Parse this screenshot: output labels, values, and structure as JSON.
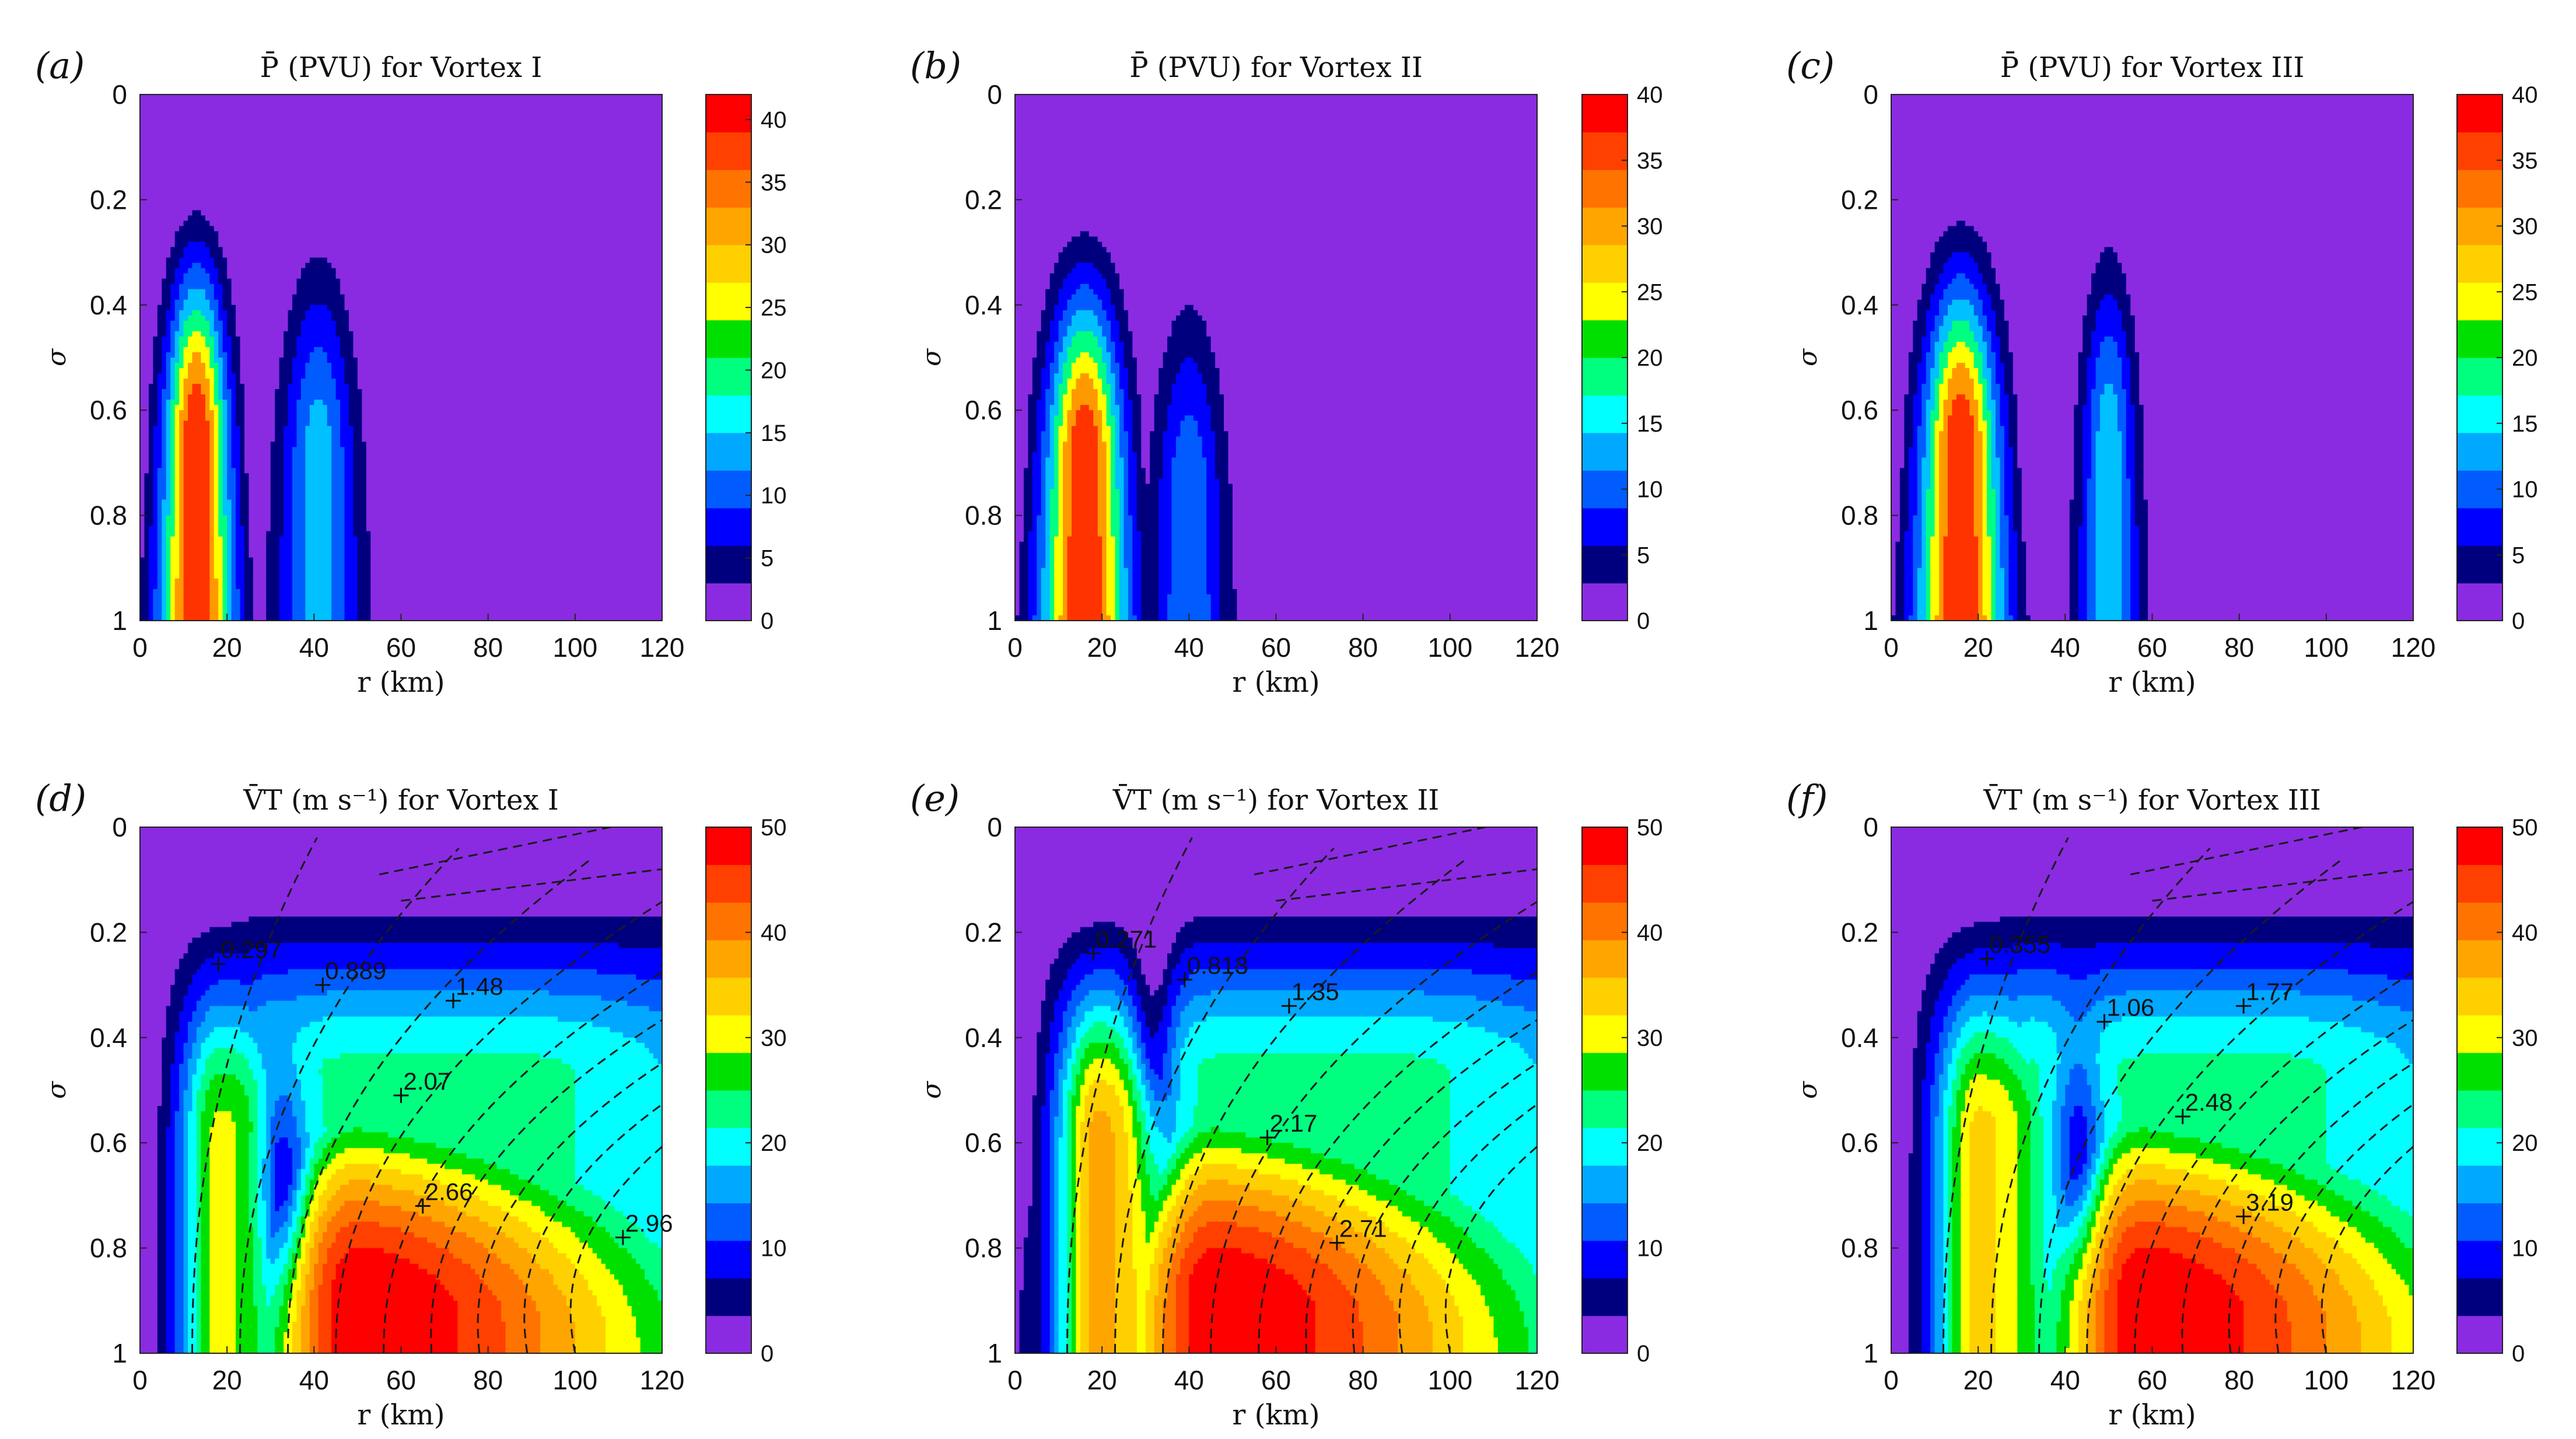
{
  "figure": {
    "panels": [
      {
        "id": "a",
        "label": "(a)",
        "title": "P̄ (PVU) for Vortex I"
      },
      {
        "id": "b",
        "label": "(b)",
        "title": "P̄ (PVU) for Vortex II"
      },
      {
        "id": "c",
        "label": "(c)",
        "title": "P̄ (PVU) for Vortex III"
      },
      {
        "id": "d",
        "label": "(d)",
        "title": "V̄T (m s⁻¹) for Vortex I"
      },
      {
        "id": "e",
        "label": "(e)",
        "title": "V̄T (m s⁻¹) for Vortex II"
      },
      {
        "id": "f",
        "label": "(f)",
        "title": "V̄T (m s⁻¹) for Vortex III"
      }
    ]
  },
  "colors": {
    "levels": [
      "#8a2be2",
      "#00007e",
      "#0000ff",
      "#005cff",
      "#00a8ff",
      "#00ffff",
      "#00ff7f",
      "#00e000",
      "#ffff00",
      "#ffd000",
      "#ffa500",
      "#ff7300",
      "#ff4000",
      "#ff0000"
    ],
    "contour": "#1a1a1a"
  },
  "chart_data": [
    {
      "type": "heatmap",
      "panel": "a",
      "title": "P̄ (PVU) for Vortex I",
      "xlabel": "r (km)",
      "ylabel": "σ",
      "xlim": [
        0,
        120
      ],
      "ylim": [
        0,
        1
      ],
      "y_reversed": true,
      "xticks": [
        0,
        20,
        40,
        60,
        80,
        100,
        120
      ],
      "yticks": [
        0,
        0.2,
        0.4,
        0.6,
        0.8,
        1
      ],
      "colorbar": {
        "min": 0,
        "max": 42,
        "ticks": [
          0,
          5,
          10,
          15,
          20,
          25,
          30,
          35,
          40
        ]
      },
      "field": {
        "kind": "pv",
        "scale": 42,
        "bumps": [
          {
            "r": 13,
            "width": 5.5,
            "sigma_top": 0.11,
            "amplitude": 42
          },
          {
            "r": 41,
            "width": 6.0,
            "sigma_top": 0.14,
            "amplitude": 21
          }
        ]
      }
    },
    {
      "type": "heatmap",
      "panel": "b",
      "title": "P̄ (PVU) for Vortex II",
      "xlabel": "r (km)",
      "ylabel": "σ",
      "xlim": [
        0,
        120
      ],
      "ylim": [
        0,
        1
      ],
      "y_reversed": true,
      "xticks": [
        0,
        20,
        40,
        60,
        80,
        100,
        120
      ],
      "yticks": [
        0,
        0.2,
        0.4,
        0.6,
        0.8,
        1
      ],
      "colorbar": {
        "min": 0,
        "max": 40,
        "ticks": [
          0,
          5,
          10,
          15,
          20,
          25,
          30,
          35,
          40
        ]
      },
      "field": {
        "kind": "pv",
        "scale": 40,
        "bumps": [
          {
            "r": 16,
            "width": 6.5,
            "sigma_top": 0.15,
            "amplitude": 40
          },
          {
            "r": 40,
            "width": 5.5,
            "sigma_top": 0.22,
            "amplitude": 17
          }
        ]
      }
    },
    {
      "type": "heatmap",
      "panel": "c",
      "title": "P̄ (PVU) for Vortex III",
      "xlabel": "r (km)",
      "ylabel": "σ",
      "xlim": [
        0,
        120
      ],
      "ylim": [
        0,
        1
      ],
      "y_reversed": true,
      "xticks": [
        0,
        20,
        40,
        60,
        80,
        100,
        120
      ],
      "yticks": [
        0,
        0.2,
        0.4,
        0.6,
        0.8,
        1
      ],
      "colorbar": {
        "min": 0,
        "max": 40,
        "ticks": [
          0,
          5,
          10,
          15,
          20,
          25,
          30,
          35,
          40
        ]
      },
      "field": {
        "kind": "pv",
        "scale": 40,
        "bumps": [
          {
            "r": 16,
            "width": 6.5,
            "sigma_top": 0.13,
            "amplitude": 40
          },
          {
            "r": 50,
            "width": 4.5,
            "sigma_top": 0.13,
            "amplitude": 21
          }
        ]
      }
    },
    {
      "type": "heatmap",
      "panel": "d",
      "title": "V̄T (m s⁻¹) for Vortex I",
      "xlabel": "r (km)",
      "ylabel": "σ",
      "xlim": [
        0,
        120
      ],
      "ylim": [
        0,
        1
      ],
      "y_reversed": true,
      "xticks": [
        0,
        20,
        40,
        60,
        80,
        100,
        120
      ],
      "yticks": [
        0,
        0.2,
        0.4,
        0.6,
        0.8,
        1
      ],
      "colorbar": {
        "min": 0,
        "max": 50,
        "ticks": [
          0,
          10,
          20,
          30,
          40,
          50
        ]
      },
      "field": {
        "kind": "vt",
        "scale": 50,
        "inner_r": 18,
        "inner_peak": 28,
        "outer_r": 50,
        "outer_peak": 50,
        "gap_r": 33,
        "gap_sigma": 0.67
      },
      "contour_labels": [
        {
          "r": 18,
          "sigma": 0.26,
          "text": "0.297"
        },
        {
          "r": 42,
          "sigma": 0.3,
          "text": "0.889"
        },
        {
          "r": 72,
          "sigma": 0.33,
          "text": "1.48"
        },
        {
          "r": 60,
          "sigma": 0.51,
          "text": "2.07"
        },
        {
          "r": 65,
          "sigma": 0.72,
          "text": "2.66"
        },
        {
          "r": 111,
          "sigma": 0.78,
          "text": "2.96"
        }
      ]
    },
    {
      "type": "heatmap",
      "panel": "e",
      "title": "V̄T (m s⁻¹) for Vortex II",
      "xlabel": "r (km)",
      "ylabel": "σ",
      "xlim": [
        0,
        120
      ],
      "ylim": [
        0,
        1
      ],
      "y_reversed": true,
      "xticks": [
        0,
        20,
        40,
        60,
        80,
        100,
        120
      ],
      "yticks": [
        0,
        0.2,
        0.4,
        0.6,
        0.8,
        1
      ],
      "colorbar": {
        "min": 0,
        "max": 50,
        "ticks": [
          0,
          10,
          20,
          30,
          40,
          50
        ]
      },
      "field": {
        "kind": "vt",
        "scale": 50,
        "inner_r": 19,
        "inner_peak": 36,
        "outer_r": 46,
        "outer_peak": 50,
        "gap_r": 32,
        "gap_sigma": 0.43
      },
      "contour_labels": [
        {
          "r": 18,
          "sigma": 0.24,
          "text": "0.271"
        },
        {
          "r": 39,
          "sigma": 0.29,
          "text": "0.813"
        },
        {
          "r": 63,
          "sigma": 0.34,
          "text": "1.35"
        },
        {
          "r": 58,
          "sigma": 0.59,
          "text": "2.17"
        },
        {
          "r": 74,
          "sigma": 0.79,
          "text": "2.71"
        }
      ]
    },
    {
      "type": "heatmap",
      "panel": "f",
      "title": "V̄T (m s⁻¹) for Vortex III",
      "xlabel": "r (km)",
      "ylabel": "σ",
      "xlim": [
        0,
        120
      ],
      "ylim": [
        0,
        1
      ],
      "y_reversed": true,
      "xticks": [
        0,
        20,
        40,
        60,
        80,
        100,
        120
      ],
      "yticks": [
        0,
        0.2,
        0.4,
        0.6,
        0.8,
        1
      ],
      "colorbar": {
        "min": 0,
        "max": 50,
        "ticks": [
          0,
          10,
          20,
          30,
          40,
          50
        ]
      },
      "field": {
        "kind": "vt",
        "scale": 50,
        "inner_r": 20,
        "inner_peak": 32,
        "outer_r": 58,
        "outer_peak": 50,
        "gap_r": 43,
        "gap_sigma": 0.61
      },
      "contour_labels": [
        {
          "r": 22,
          "sigma": 0.25,
          "text": "0.355"
        },
        {
          "r": 49,
          "sigma": 0.37,
          "text": "1.06"
        },
        {
          "r": 81,
          "sigma": 0.34,
          "text": "1.77"
        },
        {
          "r": 67,
          "sigma": 0.55,
          "text": "2.48"
        },
        {
          "r": 81,
          "sigma": 0.74,
          "text": "3.19"
        }
      ]
    }
  ]
}
